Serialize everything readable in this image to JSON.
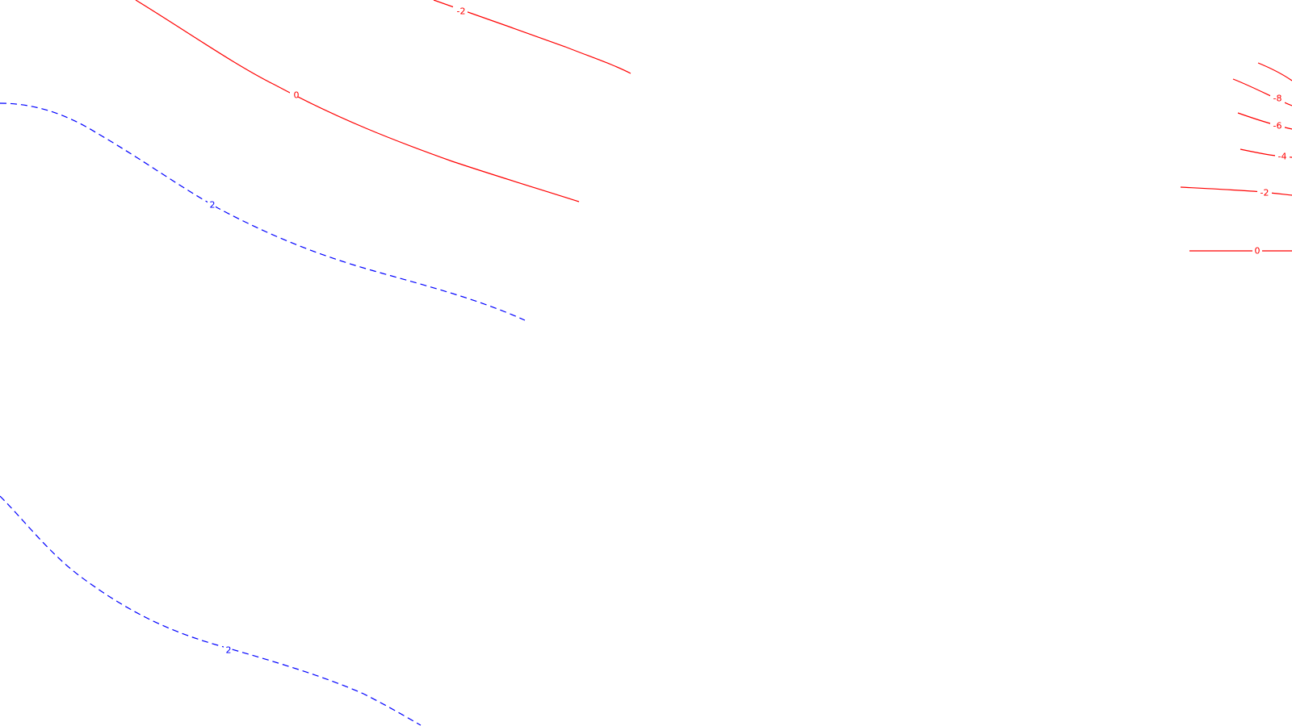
{
  "colors": {
    "background": "#ffffff",
    "negative_contour": "#ff0000",
    "positive_contour": "#0000ff"
  },
  "contours": [
    {
      "name": "contour-red-0-upper-left",
      "style": "solid",
      "color": "#ff0000",
      "label": "0"
    },
    {
      "name": "contour-red-neg2-top",
      "style": "solid",
      "color": "#ff0000",
      "label": "-2"
    },
    {
      "name": "contour-blue-2-upper",
      "style": "dashed",
      "color": "#0000ff",
      "label": "2"
    },
    {
      "name": "contour-blue-2-lower",
      "style": "dashed",
      "color": "#0000ff",
      "label": "2"
    },
    {
      "name": "contour-red-neg10-right",
      "style": "solid",
      "color": "#ff0000",
      "label": ""
    },
    {
      "name": "contour-red-neg8-right",
      "style": "solid",
      "color": "#ff0000",
      "label": "-8"
    },
    {
      "name": "contour-red-neg6-right",
      "style": "solid",
      "color": "#ff0000",
      "label": "-6"
    },
    {
      "name": "contour-red-neg4-right",
      "style": "solid",
      "color": "#ff0000",
      "label": "-4"
    },
    {
      "name": "contour-red-neg2-right",
      "style": "solid",
      "color": "#ff0000",
      "label": "-2"
    },
    {
      "name": "contour-red-0-right",
      "style": "solid",
      "color": "#ff0000",
      "label": "0"
    }
  ]
}
